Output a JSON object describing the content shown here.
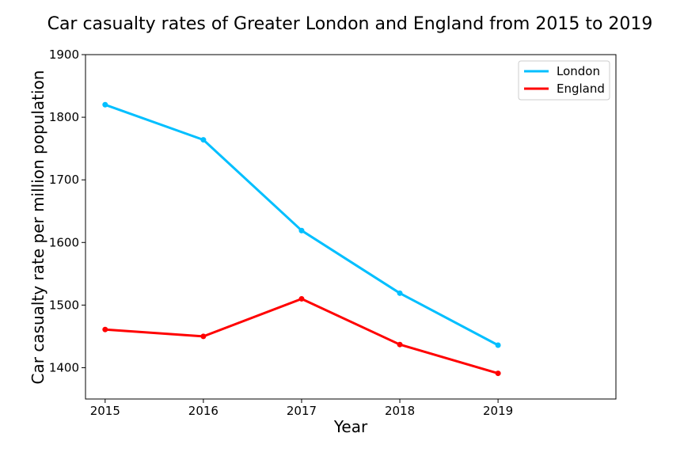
{
  "chart_data": {
    "type": "line",
    "title": "Car casualty rates of Greater London and England from 2015 to 2019",
    "xlabel": "Year",
    "ylabel": "Car casualty rate per million population",
    "x": [
      2015,
      2016,
      2017,
      2018,
      2019
    ],
    "x_tick_labels": [
      "2015",
      "2016",
      "2017",
      "2018",
      "2019"
    ],
    "xlim": [
      2014.8,
      2020.2
    ],
    "ylim": [
      1350,
      1900
    ],
    "y_ticks": [
      1400,
      1500,
      1600,
      1700,
      1800,
      1900
    ],
    "y_tick_labels": [
      "1400",
      "1500",
      "1600",
      "1700",
      "1800",
      "1900"
    ],
    "grid": false,
    "legend_position": "top-right",
    "series": [
      {
        "name": "London",
        "color": "#00bfff",
        "values": [
          1820,
          1764,
          1619,
          1519,
          1436
        ]
      },
      {
        "name": "England",
        "color": "#ff0000",
        "values": [
          1461,
          1450,
          1510,
          1437,
          1391
        ]
      }
    ]
  }
}
